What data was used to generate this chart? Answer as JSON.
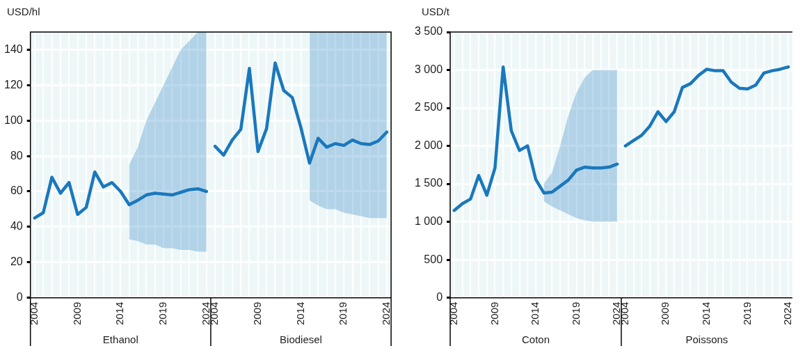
{
  "chart_data": [
    {
      "type": "line",
      "ylabel": "USD/hl",
      "categories": [
        "2004",
        null,
        null,
        null,
        null,
        "2009",
        null,
        null,
        null,
        null,
        "2014",
        null,
        null,
        null,
        null,
        "2019",
        null,
        null,
        null,
        null,
        "2024",
        "2004",
        null,
        null,
        null,
        null,
        "2009",
        null,
        null,
        null,
        null,
        "2014",
        null,
        null,
        null,
        null,
        "2019",
        null,
        null,
        null,
        null,
        "2024"
      ],
      "series": [
        {
          "color": "#1a78bd",
          "values": [
            45,
            48,
            68,
            59,
            65,
            47,
            51,
            71,
            62.5,
            65,
            60,
            52.5,
            55,
            58,
            59,
            58.5,
            58,
            59.5,
            61,
            61.5,
            60,
            null,
            null,
            null,
            null,
            null,
            null,
            null,
            null,
            null,
            null,
            null,
            null,
            null,
            null,
            null,
            null,
            null,
            null,
            null,
            null,
            null
          ],
          "lower": [
            null,
            null,
            null,
            null,
            null,
            null,
            null,
            null,
            null,
            null,
            null,
            33,
            32,
            30,
            30,
            28,
            28,
            27,
            27,
            26,
            26,
            null,
            null,
            null,
            null,
            null,
            null,
            null,
            null,
            null,
            null,
            null,
            null,
            null,
            null,
            null,
            null,
            null,
            null,
            null,
            null,
            null
          ],
          "upper": [
            null,
            null,
            null,
            null,
            null,
            null,
            null,
            null,
            null,
            null,
            null,
            75,
            85,
            100,
            110,
            120,
            130,
            140,
            145,
            150,
            150,
            null,
            null,
            null,
            null,
            null,
            null,
            null,
            null,
            null,
            null,
            null,
            null,
            null,
            null,
            null,
            null,
            null,
            null,
            null,
            null,
            null
          ]
        },
        {
          "color": "#1a78bd",
          "values": [
            null,
            null,
            null,
            null,
            null,
            null,
            null,
            null,
            null,
            null,
            null,
            null,
            null,
            null,
            null,
            null,
            null,
            null,
            null,
            null,
            null,
            85.5,
            80.5,
            89,
            95,
            129.5,
            82.5,
            95.5,
            132.5,
            117,
            113,
            96,
            76,
            90,
            85,
            87,
            86,
            89,
            87,
            86.5,
            88.5,
            93.5
          ],
          "lower": [
            null,
            null,
            null,
            null,
            null,
            null,
            null,
            null,
            null,
            null,
            null,
            null,
            null,
            null,
            null,
            null,
            null,
            null,
            null,
            null,
            null,
            null,
            null,
            null,
            null,
            null,
            null,
            null,
            null,
            null,
            null,
            null,
            55,
            52,
            50,
            50,
            48,
            47,
            46,
            45,
            45,
            45
          ],
          "upper": [
            null,
            null,
            null,
            null,
            null,
            null,
            null,
            null,
            null,
            null,
            null,
            null,
            null,
            null,
            null,
            null,
            null,
            null,
            null,
            null,
            null,
            null,
            null,
            null,
            null,
            null,
            null,
            null,
            null,
            null,
            null,
            null,
            150,
            150,
            150,
            150,
            150,
            150,
            150,
            150,
            150,
            150
          ]
        }
      ],
      "ylim": [
        0,
        150
      ],
      "yticks": [
        0,
        20,
        40,
        60,
        80,
        100,
        120,
        140
      ],
      "grid": true,
      "legend": false,
      "marker": "none",
      "line_style": "solid",
      "annotations": [
        "Ethanol",
        "Biodiesel"
      ]
    },
    {
      "type": "line",
      "ylabel": "USD/t",
      "categories": [
        "2004",
        null,
        null,
        null,
        null,
        "2009",
        null,
        null,
        null,
        null,
        "2014",
        null,
        null,
        null,
        null,
        "2019",
        null,
        null,
        null,
        null,
        "2024",
        "2004",
        null,
        null,
        null,
        null,
        "2009",
        null,
        null,
        null,
        null,
        "2014",
        null,
        null,
        null,
        null,
        "2019",
        null,
        null,
        null,
        null,
        "2024"
      ],
      "series": [
        {
          "color": "#1a78bd",
          "values": [
            1150,
            1240,
            1300,
            1610,
            1350,
            1710,
            3040,
            2200,
            1940,
            2000,
            1560,
            1380,
            1390,
            1470,
            1550,
            1680,
            1720,
            1710,
            1710,
            1720,
            1760,
            null,
            null,
            null,
            null,
            null,
            null,
            null,
            null,
            null,
            null,
            null,
            null,
            null,
            null,
            null,
            null,
            null,
            null,
            null,
            null,
            null
          ],
          "lower": [
            null,
            null,
            null,
            null,
            null,
            null,
            null,
            null,
            null,
            null,
            null,
            1270,
            1200,
            1150,
            1100,
            1050,
            1020,
            1000,
            1000,
            1000,
            1000,
            null,
            null,
            null,
            null,
            null,
            null,
            null,
            null,
            null,
            null,
            null,
            null,
            null,
            null,
            null,
            null,
            null,
            null,
            null,
            null,
            null
          ],
          "upper": [
            null,
            null,
            null,
            null,
            null,
            null,
            null,
            null,
            null,
            null,
            null,
            1500,
            1650,
            2000,
            2400,
            2700,
            2900,
            3000,
            3000,
            3000,
            3000,
            null,
            null,
            null,
            null,
            null,
            null,
            null,
            null,
            null,
            null,
            null,
            null,
            null,
            null,
            null,
            null,
            null,
            null,
            null,
            null,
            null
          ]
        },
        {
          "color": "#1a78bd",
          "values": [
            null,
            null,
            null,
            null,
            null,
            null,
            null,
            null,
            null,
            null,
            null,
            null,
            null,
            null,
            null,
            null,
            null,
            null,
            null,
            null,
            null,
            2000,
            2070,
            2140,
            2260,
            2450,
            2320,
            2450,
            2770,
            2820,
            2930,
            3010,
            2990,
            2990,
            2840,
            2760,
            2750,
            2800,
            2960,
            2990,
            3010,
            3040
          ]
        }
      ],
      "ylim": [
        0,
        3500
      ],
      "yticks": [
        0,
        500,
        {
          "value": 1000,
          "label": "1 000"
        },
        {
          "value": 1500,
          "label": "1 500"
        },
        {
          "value": 2000,
          "label": "2 000"
        },
        {
          "value": 2500,
          "label": "2 500"
        },
        {
          "value": 3000,
          "label": "3 000"
        },
        {
          "value": 3500,
          "label": "3 500"
        }
      ],
      "grid": true,
      "legend": false,
      "marker": "none",
      "line_style": "solid",
      "annotations": [
        "Coton",
        "Poissons"
      ]
    }
  ]
}
